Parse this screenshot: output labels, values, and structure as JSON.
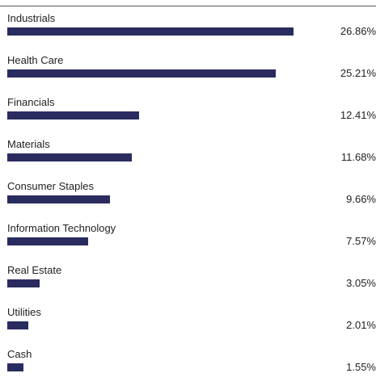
{
  "chart_data": {
    "type": "bar",
    "orientation": "horizontal",
    "categories": [
      "Industrials",
      "Health Care",
      "Financials",
      "Materials",
      "Consumer Staples",
      "Information Technology",
      "Real Estate",
      "Utilities",
      "Cash"
    ],
    "values": [
      26.86,
      25.21,
      12.41,
      11.68,
      9.66,
      7.57,
      3.05,
      2.01,
      1.55
    ],
    "value_labels": [
      "26.86%",
      "25.21%",
      "12.41%",
      "11.68%",
      "9.66%",
      "7.57%",
      "3.05%",
      "2.01%",
      "1.55%"
    ],
    "title": "",
    "xlabel": "",
    "ylabel": "",
    "xlim": [
      0,
      31
    ],
    "grid": false,
    "legend": "none",
    "bar_color": "#2a2b5e"
  }
}
